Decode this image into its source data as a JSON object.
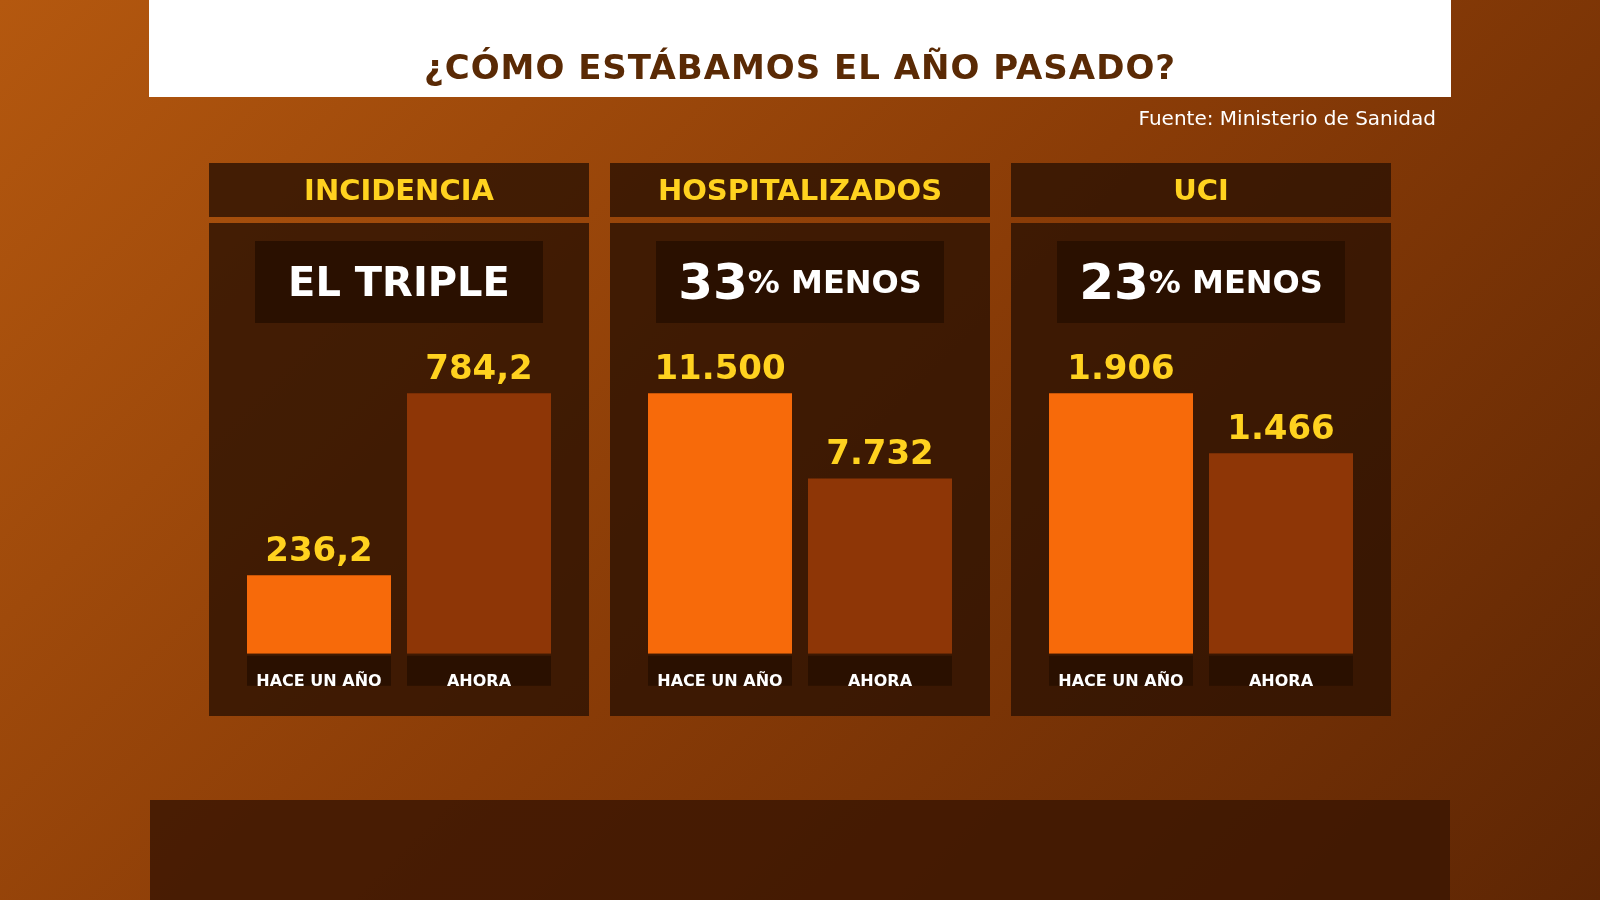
{
  "chart_data": [
    {
      "type": "other",
      "title": "¿CÓMO ESTÁBAMOS EL AÑO PASADO?",
      "annotations": [
        "Fuente: Ministerio de Sanidad"
      ]
    },
    {
      "type": "bar",
      "title": "INCIDENCIA",
      "subtitle": "EL TRIPLE",
      "categories": [
        "HACE UN AÑO",
        "AHORA"
      ],
      "values": [
        236.2,
        784.2
      ],
      "value_labels": [
        "236,2",
        "784,2"
      ],
      "colors": [
        "#f76a0a",
        "#8e3606"
      ]
    },
    {
      "type": "bar",
      "title": "HOSPITALIZADOS",
      "subtitle": "33% MENOS",
      "categories": [
        "HACE UN AÑO",
        "AHORA"
      ],
      "values": [
        11500,
        7732
      ],
      "value_labels": [
        "11.500",
        "7.732"
      ],
      "colors": [
        "#f76a0a",
        "#8e3606"
      ]
    },
    {
      "type": "bar",
      "title": "UCI",
      "subtitle": "23% MENOS",
      "categories": [
        "HACE UN AÑO",
        "AHORA"
      ],
      "values": [
        1906,
        1466
      ],
      "value_labels": [
        "1.906",
        "1.466"
      ],
      "colors": [
        "#f76a0a",
        "#8e3606"
      ]
    }
  ]
}
